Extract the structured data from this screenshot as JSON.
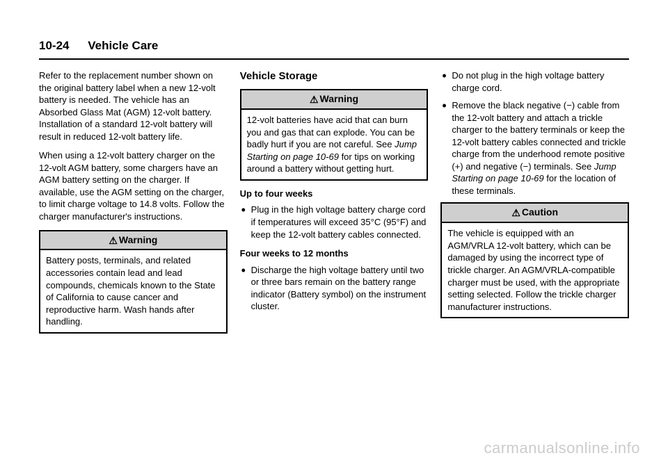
{
  "header": {
    "page_number": "10-24",
    "section_title": "Vehicle Care"
  },
  "col1": {
    "p1": "Refer to the replacement number shown on the original battery label when a new 12-volt battery is needed. The vehicle has an Absorbed Glass Mat (AGM) 12-volt battery. Installation of a standard 12-volt battery will result in reduced 12-volt battery life.",
    "p2": "When using a 12-volt battery charger on the 12-volt AGM battery, some chargers have an AGM battery setting on the charger. If available, use the AGM setting on the charger, to limit charge voltage to 14.8 volts. Follow the charger manufacturer's instructions.",
    "warning_label": "Warning",
    "warning_body": "Battery posts, terminals, and related accessories contain lead and lead compounds, chemicals known to the State of California to cause cancer and reproductive harm. Wash hands after handling."
  },
  "col2": {
    "heading": "Vehicle Storage",
    "warning_label": "Warning",
    "warning_body_a": "12-volt batteries have acid that can burn you and gas that can explode. You can be badly hurt if you are not careful. See ",
    "warning_body_link": "Jump Starting on page 10-69",
    "warning_body_b": " for tips on working around a battery without getting hurt.",
    "sub_up4": "Up to four weeks",
    "li_up4": "Plug in the high voltage battery charge cord if temperatures will exceed 35°C (95°F) and keep the 12-volt battery cables connected.",
    "sub_4to12": "Four weeks to 12 months",
    "li_4to12": "Discharge the high voltage battery until two or three bars remain on the battery range indicator (Battery symbol) on the instrument cluster."
  },
  "col3": {
    "li1": "Do not plug in the high voltage battery charge cord.",
    "li2a": "Remove the black negative (−) cable from the 12-volt battery and attach a trickle charger to the battery terminals or keep the 12-volt battery cables connected and trickle charge from the underhood remote positive (+) and negative (−) terminals. See ",
    "li2_link": "Jump Starting on page 10-69",
    "li2b": " for the location of these terminals.",
    "caution_label": "Caution",
    "caution_body": "The vehicle is equipped with an AGM/VRLA 12-volt battery, which can be damaged by using the incorrect type of trickle charger. An AGM/VRLA-compatible charger must be used, with the appropriate setting selected. Follow the trickle charger manufacturer instructions."
  },
  "watermark": "carmanualsonline.info",
  "icons": {
    "triangle": "⚠"
  }
}
